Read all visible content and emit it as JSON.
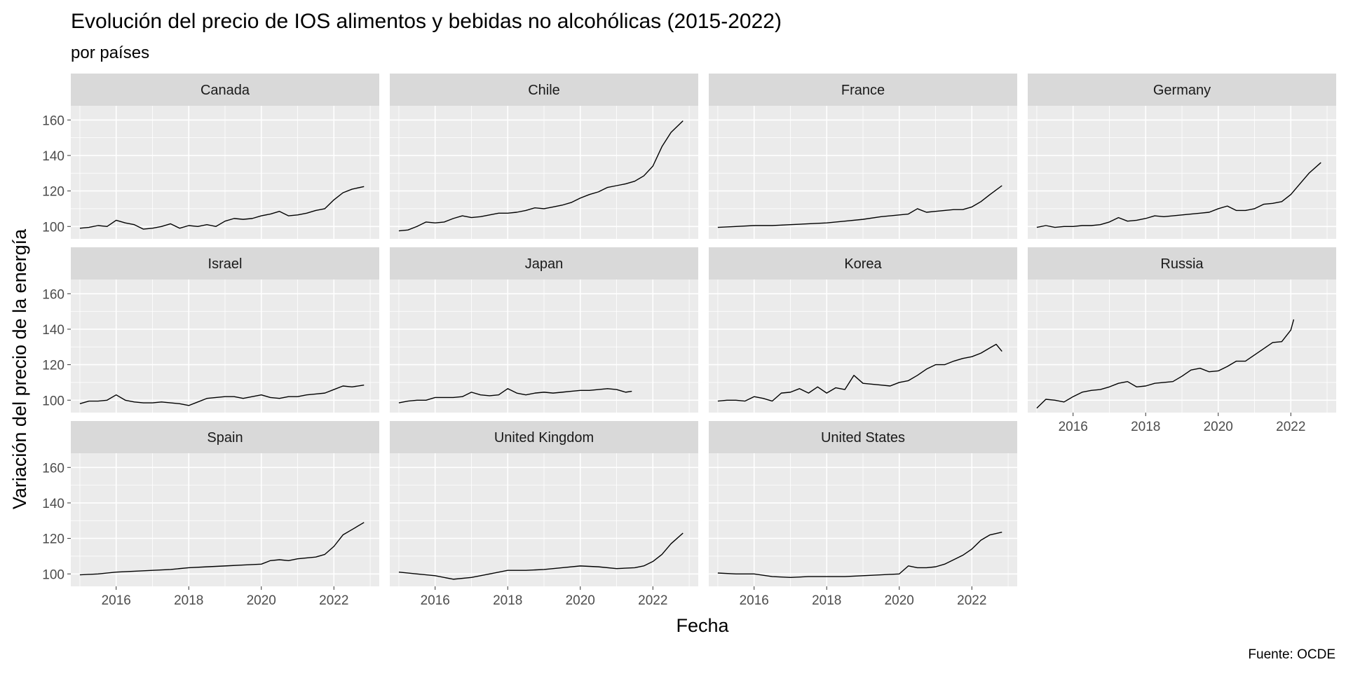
{
  "chart_data": {
    "type": "line",
    "title": "Evolución del precio de IOS alimentos y bebidas no alcohólicas (2015-2022)",
    "subtitle": "por países",
    "xlabel": "Fecha",
    "ylabel": "Variación del precio de la energía",
    "caption": "Fuente: OCDE",
    "xlim": [
      2014.75,
      2023.25
    ],
    "ylim": [
      93,
      168
    ],
    "x_ticks": [
      2016,
      2018,
      2020,
      2022
    ],
    "y_ticks": [
      100,
      120,
      140,
      160
    ],
    "grid": true,
    "facet_columns": 4,
    "line_color": "#000000",
    "panel_background": "#ebebeb",
    "strip_background": "#d9d9d9",
    "grid_color": "#ffffff",
    "facets": [
      {
        "name": "Canada",
        "x": [
          2015.0,
          2015.25,
          2015.5,
          2015.75,
          2016.0,
          2016.25,
          2016.5,
          2016.75,
          2017.0,
          2017.25,
          2017.5,
          2017.75,
          2018.0,
          2018.25,
          2018.5,
          2018.75,
          2019.0,
          2019.25,
          2019.5,
          2019.75,
          2020.0,
          2020.25,
          2020.5,
          2020.75,
          2021.0,
          2021.25,
          2021.5,
          2021.75,
          2022.0,
          2022.25,
          2022.5,
          2022.83
        ],
        "values": [
          99,
          99.5,
          100.5,
          100,
          103.5,
          102,
          101,
          98.5,
          99,
          100,
          101.5,
          99,
          100.5,
          100,
          101,
          100,
          103,
          104.5,
          104,
          104.5,
          106,
          107,
          108.5,
          106,
          106.5,
          107.5,
          109,
          110,
          115,
          119,
          121,
          122.5
        ]
      },
      {
        "name": "Chile",
        "x": [
          2015.0,
          2015.25,
          2015.5,
          2015.75,
          2016.0,
          2016.25,
          2016.5,
          2016.75,
          2017.0,
          2017.25,
          2017.5,
          2017.75,
          2018.0,
          2018.25,
          2018.5,
          2018.75,
          2019.0,
          2019.25,
          2019.5,
          2019.75,
          2020.0,
          2020.25,
          2020.5,
          2020.75,
          2021.0,
          2021.25,
          2021.5,
          2021.75,
          2022.0,
          2022.25,
          2022.5,
          2022.83
        ],
        "values": [
          97.5,
          98,
          100,
          102.5,
          102,
          102.5,
          104.5,
          106,
          105,
          105.5,
          106.5,
          107.5,
          107.5,
          108,
          109,
          110.5,
          110,
          111,
          112,
          113.5,
          116,
          118,
          119.5,
          122,
          123,
          124,
          125.5,
          128.5,
          134,
          145,
          153,
          159.5
        ]
      },
      {
        "name": "France",
        "x": [
          2015.0,
          2015.5,
          2016.0,
          2016.5,
          2017.0,
          2017.5,
          2018.0,
          2018.5,
          2019.0,
          2019.5,
          2020.0,
          2020.25,
          2020.5,
          2020.75,
          2021.0,
          2021.25,
          2021.5,
          2021.75,
          2022.0,
          2022.25,
          2022.5,
          2022.83
        ],
        "values": [
          99.5,
          100,
          100.5,
          100.5,
          101,
          101.5,
          102,
          103,
          104,
          105.5,
          106.5,
          107,
          110,
          108,
          108.5,
          109,
          109.5,
          109.5,
          111,
          114,
          118,
          123
        ]
      },
      {
        "name": "Germany",
        "x": [
          2015.0,
          2015.25,
          2015.5,
          2015.75,
          2016.0,
          2016.25,
          2016.5,
          2016.75,
          2017.0,
          2017.25,
          2017.5,
          2017.75,
          2018.0,
          2018.25,
          2018.5,
          2018.75,
          2019.0,
          2019.25,
          2019.5,
          2019.75,
          2020.0,
          2020.25,
          2020.5,
          2020.75,
          2021.0,
          2021.25,
          2021.5,
          2021.75,
          2022.0,
          2022.25,
          2022.5,
          2022.83
        ],
        "values": [
          99.5,
          100.5,
          99.5,
          100,
          100,
          100.5,
          100.5,
          101,
          102.5,
          105,
          103,
          103.5,
          104.5,
          106,
          105.5,
          106,
          106.5,
          107,
          107.5,
          108,
          110,
          111.5,
          109,
          109,
          110,
          112.5,
          113,
          114,
          118,
          124,
          130,
          136
        ]
      },
      {
        "name": "Israel",
        "x": [
          2015.0,
          2015.25,
          2015.5,
          2015.75,
          2016.0,
          2016.25,
          2016.5,
          2016.75,
          2017.0,
          2017.25,
          2017.5,
          2017.75,
          2018.0,
          2018.25,
          2018.5,
          2018.75,
          2019.0,
          2019.25,
          2019.5,
          2019.75,
          2020.0,
          2020.25,
          2020.5,
          2020.75,
          2021.0,
          2021.25,
          2021.5,
          2021.75,
          2022.0,
          2022.25,
          2022.5,
          2022.83
        ],
        "values": [
          98,
          99.5,
          99.5,
          100,
          103,
          100,
          99,
          98.5,
          98.5,
          99,
          98.5,
          98,
          97,
          99,
          101,
          101.5,
          102,
          102,
          101,
          102,
          103,
          101.5,
          101,
          102,
          102,
          103,
          103.5,
          104,
          106,
          108,
          107.5,
          108.5
        ]
      },
      {
        "name": "Japan",
        "x": [
          2015.0,
          2015.25,
          2015.5,
          2015.75,
          2016.0,
          2016.25,
          2016.5,
          2016.75,
          2017.0,
          2017.25,
          2017.5,
          2017.75,
          2018.0,
          2018.25,
          2018.5,
          2018.75,
          2019.0,
          2019.25,
          2019.5,
          2019.75,
          2020.0,
          2020.25,
          2020.5,
          2020.75,
          2021.0,
          2021.25,
          2021.42
        ],
        "values": [
          98.5,
          99.5,
          100,
          100,
          101.5,
          101.5,
          101.5,
          102,
          104.5,
          103,
          102.5,
          103,
          106.5,
          104,
          103,
          104,
          104.5,
          104,
          104.5,
          105,
          105.5,
          105.5,
          106,
          106.5,
          106,
          104.5,
          105
        ]
      },
      {
        "name": "Korea",
        "x": [
          2015.0,
          2015.25,
          2015.5,
          2015.75,
          2016.0,
          2016.25,
          2016.5,
          2016.75,
          2017.0,
          2017.25,
          2017.5,
          2017.75,
          2018.0,
          2018.25,
          2018.5,
          2018.75,
          2019.0,
          2019.25,
          2019.5,
          2019.75,
          2020.0,
          2020.25,
          2020.5,
          2020.75,
          2021.0,
          2021.25,
          2021.5,
          2021.75,
          2022.0,
          2022.25,
          2022.5,
          2022.67,
          2022.83
        ],
        "values": [
          99.5,
          100,
          100,
          99.5,
          102,
          101,
          99.5,
          104,
          104.5,
          106.5,
          104,
          107.5,
          104,
          107,
          106,
          114,
          109.5,
          109,
          108.5,
          108,
          110,
          111,
          114,
          117.5,
          120,
          120,
          122,
          123.5,
          124.5,
          126.5,
          129.5,
          131.5,
          127.5
        ]
      },
      {
        "name": "Russia",
        "x": [
          2015.0,
          2015.25,
          2015.5,
          2015.75,
          2016.0,
          2016.25,
          2016.5,
          2016.75,
          2017.0,
          2017.25,
          2017.5,
          2017.75,
          2018.0,
          2018.25,
          2018.5,
          2018.75,
          2019.0,
          2019.25,
          2019.5,
          2019.75,
          2020.0,
          2020.25,
          2020.5,
          2020.75,
          2021.0,
          2021.25,
          2021.5,
          2021.75,
          2022.0,
          2022.08
        ],
        "values": [
          95.5,
          100.5,
          100,
          99,
          102,
          104.5,
          105.5,
          106,
          107.5,
          109.5,
          110.5,
          107.5,
          108,
          109.5,
          110,
          110.5,
          113.5,
          117,
          118,
          116,
          116.5,
          119,
          122,
          122,
          125.5,
          129,
          132.5,
          133,
          139.5,
          145.5
        ]
      },
      {
        "name": "Spain",
        "x": [
          2015.0,
          2015.5,
          2016.0,
          2016.5,
          2017.0,
          2017.5,
          2018.0,
          2018.5,
          2019.0,
          2019.5,
          2020.0,
          2020.25,
          2020.5,
          2020.75,
          2021.0,
          2021.25,
          2021.5,
          2021.75,
          2022.0,
          2022.25,
          2022.5,
          2022.83
        ],
        "values": [
          99.5,
          100,
          101,
          101.5,
          102,
          102.5,
          103.5,
          104,
          104.5,
          105,
          105.5,
          107.5,
          108,
          107.5,
          108.5,
          109,
          109.5,
          111,
          115.5,
          122,
          125,
          129
        ]
      },
      {
        "name": "United Kingdom",
        "x": [
          2015.0,
          2015.5,
          2016.0,
          2016.5,
          2017.0,
          2017.5,
          2018.0,
          2018.5,
          2019.0,
          2019.5,
          2020.0,
          2020.5,
          2021.0,
          2021.5,
          2021.75,
          2022.0,
          2022.25,
          2022.5,
          2022.83
        ],
        "values": [
          101,
          100,
          99,
          97,
          98,
          100,
          102,
          102,
          102.5,
          103.5,
          104.5,
          104,
          103,
          103.5,
          104.5,
          107,
          111,
          117,
          123
        ]
      },
      {
        "name": "United States",
        "x": [
          2015.0,
          2015.5,
          2016.0,
          2016.5,
          2017.0,
          2017.5,
          2018.0,
          2018.5,
          2019.0,
          2019.5,
          2020.0,
          2020.25,
          2020.5,
          2020.75,
          2021.0,
          2021.25,
          2021.5,
          2021.75,
          2022.0,
          2022.25,
          2022.5,
          2022.83
        ],
        "values": [
          100.5,
          100,
          100,
          98.5,
          98,
          98.5,
          98.5,
          98.5,
          99,
          99.5,
          100,
          104.5,
          103.5,
          103.5,
          104,
          105.5,
          108,
          110.5,
          114,
          119,
          122,
          123.5
        ]
      }
    ]
  }
}
